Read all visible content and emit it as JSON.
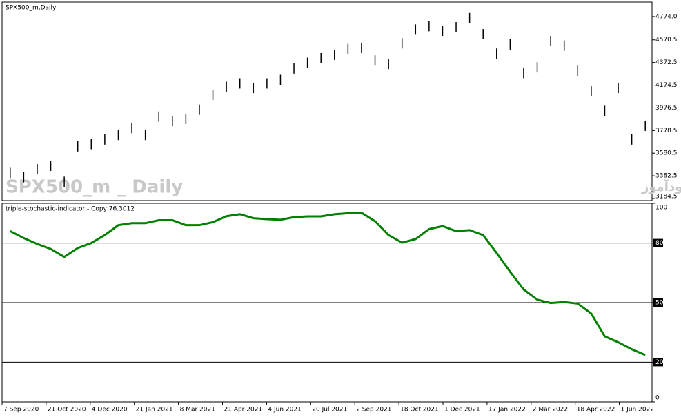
{
  "chart_data": [
    {
      "type": "hl_bars",
      "title": "SPX500_m,Daily",
      "watermark": "SPX500_m _ Daily",
      "annotation": "انتشار در سایت سودآموز",
      "color": "#000000",
      "high": [
        3453,
        3415,
        3485,
        3515,
        3375,
        3685,
        3705,
        3745,
        3785,
        3845,
        3785,
        3945,
        3905,
        3925,
        4005,
        4135,
        4205,
        4235,
        4195,
        4235,
        4265,
        4365,
        4415,
        4455,
        4485,
        4535,
        4545,
        4435,
        4405,
        4585,
        4705,
        4735,
        4695,
        4725,
        4805,
        4665,
        4495,
        4575,
        4325,
        4375,
        4605,
        4565,
        4345,
        4165,
        3995,
        4195,
        3745,
        3865
      ],
      "low": [
        3363,
        3325,
        3395,
        3425,
        3285,
        3595,
        3615,
        3655,
        3695,
        3755,
        3695,
        3855,
        3815,
        3835,
        3915,
        4045,
        4115,
        4145,
        4105,
        4145,
        4175,
        4275,
        4325,
        4365,
        4395,
        4445,
        4455,
        4345,
        4315,
        4495,
        4615,
        4645,
        4605,
        4635,
        4715,
        4575,
        4405,
        4485,
        4235,
        4285,
        4515,
        4475,
        4255,
        4075,
        3905,
        4105,
        3655,
        3775
      ],
      "ylim": [
        3166.5,
        4888
      ],
      "yticks": [
        3184.5,
        3382.5,
        3580.5,
        3778.5,
        3976.5,
        4174.5,
        4372.5,
        4570.5,
        {
          "value": 4774,
          "label": "4774.0"
        }
      ]
    },
    {
      "type": "line",
      "title": "triple-stochastic-indicator - Copy 76.3012",
      "color": "#008000",
      "values": [
        86,
        82.5,
        79.5,
        77,
        73,
        77.5,
        80,
        84,
        89,
        90,
        90,
        91.5,
        91.5,
        89,
        89,
        90.5,
        93.5,
        94.5,
        92.5,
        92,
        91.7,
        93,
        93.4,
        93.4,
        94.5,
        95,
        95.2,
        91,
        84,
        80.2,
        82,
        87,
        88.5,
        86,
        86.5,
        84,
        75,
        65.5,
        56.6,
        51.5,
        49.8,
        50.3,
        49.5,
        44.5,
        33,
        30,
        26.5,
        23.6
      ],
      "ylim": [
        0,
        100
      ],
      "yticks": [
        0,
        20,
        50,
        80,
        100
      ],
      "levels": [
        20,
        50,
        80
      ],
      "x_labels": [
        "7 Sep 2020",
        "21 Oct 2020",
        "4 Dec 2020",
        "21 Jan 2021",
        "8 Mar 2021",
        "21 Apr 2021",
        "4 Jun 2021",
        "20 Jul 2021",
        "2 Sep 2021",
        "18 Oct 2021",
        "1 Dec 2021",
        "17 Jan 2022",
        "2 Mar 2022",
        "18 Apr 2022",
        "1 Jun 2022"
      ]
    }
  ]
}
